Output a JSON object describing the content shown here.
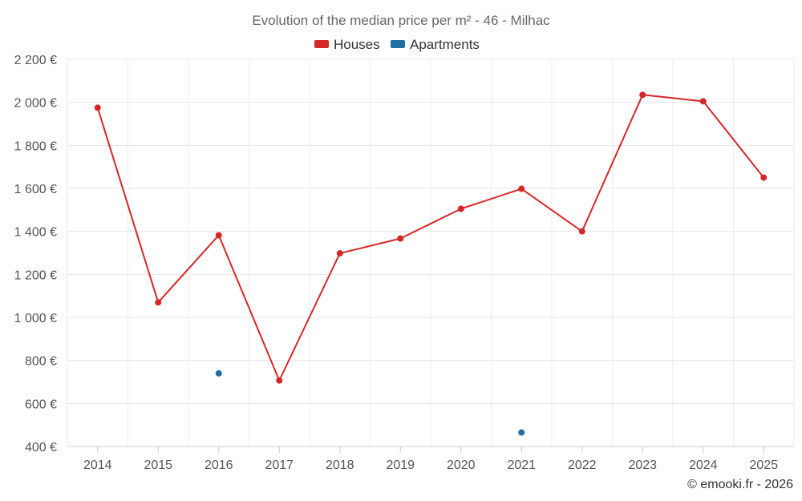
{
  "chart_data": {
    "type": "line",
    "title": "Evolution of the median price per m² - 46 - Milhac",
    "categories": [
      "2014",
      "2015",
      "2016",
      "2017",
      "2018",
      "2019",
      "2020",
      "2021",
      "2022",
      "2023",
      "2024",
      "2025"
    ],
    "series": [
      {
        "name": "Houses",
        "color": "#d62728",
        "values": [
          1975,
          1070,
          1382,
          707,
          1298,
          1367,
          1505,
          1598,
          1400,
          2035,
          2005,
          1650
        ]
      },
      {
        "name": "Apartments",
        "color": "#1f6fa5",
        "values": [
          null,
          null,
          740,
          null,
          null,
          null,
          null,
          465,
          null,
          null,
          null,
          null
        ]
      }
    ],
    "y_ticks": [
      "400 €",
      "600 €",
      "800 €",
      "1 000 €",
      "1 200 €",
      "1 400 €",
      "1 600 €",
      "1 800 €",
      "2 000 €",
      "2 200 €"
    ],
    "ylim": [
      400,
      2200
    ],
    "y_tick_step": 200,
    "grid": true,
    "legend_position": "top-center",
    "xlabel": "",
    "ylabel": "",
    "credit": "© emooki.fr - 2026"
  }
}
